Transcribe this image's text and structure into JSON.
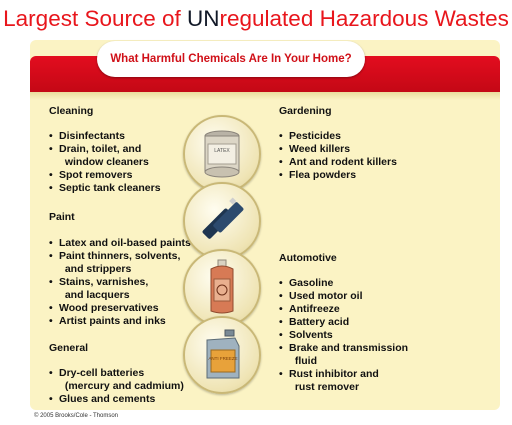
{
  "title": {
    "prefix": "Largest Source of ",
    "highlight": "UN",
    "suffix": "regulated Hazardous Wastes"
  },
  "subtitle": "What Harmful Chemicals Are In Your Home?",
  "left_sections": [
    {
      "heading": "Cleaning",
      "items": [
        "Disinfectants",
        "Drain, toilet, and\n  window cleaners",
        "Spot removers",
        "Septic tank cleaners"
      ]
    },
    {
      "heading": "Paint",
      "items": [
        "Latex and oil-based paints",
        "Paint thinners, solvents,\n  and strippers",
        "Stains, varnishes,\n  and lacquers",
        "Wood preservatives",
        "Artist paints and inks"
      ]
    },
    {
      "heading": "General",
      "items": [
        "Dry-cell batteries\n  (mercury and cadmium)",
        "Glues and cements"
      ]
    }
  ],
  "right_sections": [
    {
      "heading": "Gardening",
      "items": [
        "Pesticides",
        "Weed killers",
        "Ant and rodent killers",
        "Flea powders"
      ]
    },
    {
      "heading": "Automotive",
      "items": [
        "Gasoline",
        "Used motor oil",
        "Antifreeze",
        "Battery acid",
        "Solvents",
        "Brake and transmission\n  fluid",
        "Rust inhibitor and\n  rust remover"
      ]
    }
  ],
  "images": [
    {
      "icon": "paint-can-icon",
      "label": "LATEX"
    },
    {
      "icon": "batteries-icon",
      "label": ""
    },
    {
      "icon": "spray-can-icon",
      "label": ""
    },
    {
      "icon": "oil-jug-icon",
      "label": "ANTI FREEZE"
    }
  ],
  "copyright": "© 2005 Brooks/Cole - Thomson",
  "colors": {
    "accent": "#e8161c",
    "band": "#d40b1a",
    "card": "#fbf3c4"
  }
}
